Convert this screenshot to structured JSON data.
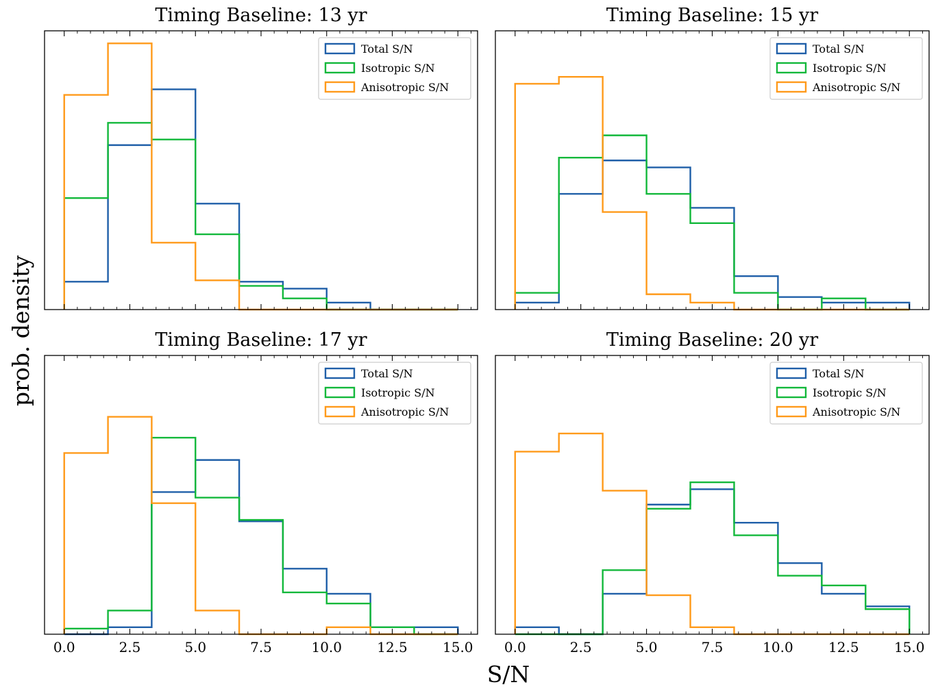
{
  "figure": {
    "xlabel": "S/N",
    "ylabel": "prob. density"
  },
  "colors": {
    "total": "#1f5fa8",
    "isotropic": "#12b83a",
    "anisotropic": "#ff9a1a"
  },
  "chart_data": [
    {
      "type": "histogram",
      "title": "Timing Baseline: 13 yr",
      "bin_edges": [
        0,
        1.667,
        3.333,
        5.0,
        6.667,
        8.333,
        10.0,
        11.667,
        13.333,
        15.0
      ],
      "xlim": [
        -0.75,
        15.75
      ],
      "ylim": [
        0,
        1.0
      ],
      "xticks": [
        0.0,
        2.5,
        5.0,
        7.5,
        10.0,
        12.5,
        15.0
      ],
      "tick_labels_visible": false,
      "legend": "top-right",
      "series": [
        {
          "name": "Total S/N",
          "color_key": "total",
          "values": [
            0.1,
            0.59,
            0.79,
            0.38,
            0.1,
            0.075,
            0.025,
            0,
            0
          ]
        },
        {
          "name": "Isotropic S/N",
          "color_key": "isotropic",
          "values": [
            0.4,
            0.67,
            0.61,
            0.27,
            0.085,
            0.04,
            0,
            0,
            0
          ]
        },
        {
          "name": "Anisotropic S/N",
          "color_key": "anisotropic",
          "values": [
            0.77,
            0.955,
            0.24,
            0.105,
            0,
            0,
            0,
            0,
            0
          ]
        }
      ]
    },
    {
      "type": "histogram",
      "title": "Timing Baseline: 15 yr",
      "bin_edges": [
        0,
        1.667,
        3.333,
        5.0,
        6.667,
        8.333,
        10.0,
        11.667,
        13.333,
        15.0
      ],
      "xlim": [
        -0.75,
        15.75
      ],
      "ylim": [
        0,
        1.0
      ],
      "xticks": [
        0.0,
        2.5,
        5.0,
        7.5,
        10.0,
        12.5,
        15.0
      ],
      "tick_labels_visible": false,
      "legend": "top-right",
      "series": [
        {
          "name": "Total S/N",
          "color_key": "total",
          "values": [
            0.025,
            0.415,
            0.535,
            0.51,
            0.365,
            0.12,
            0.045,
            0.025,
            0.025
          ]
        },
        {
          "name": "Isotropic S/N",
          "color_key": "isotropic",
          "values": [
            0.06,
            0.545,
            0.625,
            0.415,
            0.31,
            0.06,
            0,
            0.04,
            0
          ]
        },
        {
          "name": "Anisotropic S/N",
          "color_key": "anisotropic",
          "values": [
            0.81,
            0.835,
            0.35,
            0.055,
            0.025,
            0,
            0,
            0,
            0
          ]
        }
      ]
    },
    {
      "type": "histogram",
      "title": "Timing Baseline: 17 yr",
      "bin_edges": [
        0,
        1.667,
        3.333,
        5.0,
        6.667,
        8.333,
        10.0,
        11.667,
        13.333,
        15.0
      ],
      "xlim": [
        -0.75,
        15.75
      ],
      "ylim": [
        0,
        1.0
      ],
      "xticks": [
        0.0,
        2.5,
        5.0,
        7.5,
        10.0,
        12.5,
        15.0
      ],
      "tick_labels_visible": true,
      "legend": "top-right",
      "series": [
        {
          "name": "Total S/N",
          "color_key": "total",
          "values": [
            0,
            0.025,
            0.51,
            0.625,
            0.405,
            0.235,
            0.145,
            0.025,
            0.025
          ]
        },
        {
          "name": "Isotropic S/N",
          "color_key": "isotropic",
          "values": [
            0.02,
            0.085,
            0.705,
            0.49,
            0.41,
            0.15,
            0.11,
            0.025,
            0
          ]
        },
        {
          "name": "Anisotropic S/N",
          "color_key": "anisotropic",
          "values": [
            0.65,
            0.78,
            0.47,
            0.085,
            0,
            0,
            0.025,
            0,
            0
          ]
        }
      ]
    },
    {
      "type": "histogram",
      "title": "Timing Baseline: 20 yr",
      "bin_edges": [
        0,
        1.667,
        3.333,
        5.0,
        6.667,
        8.333,
        10.0,
        11.667,
        13.333,
        15.0
      ],
      "xlim": [
        -0.75,
        15.75
      ],
      "ylim": [
        0,
        1.0
      ],
      "xticks": [
        0.0,
        2.5,
        5.0,
        7.5,
        10.0,
        12.5,
        15.0
      ],
      "tick_labels_visible": true,
      "legend": "top-right",
      "series": [
        {
          "name": "Total S/N",
          "color_key": "total",
          "values": [
            0.025,
            0,
            0.145,
            0.465,
            0.52,
            0.4,
            0.255,
            0.145,
            0.1
          ]
        },
        {
          "name": "Isotropic S/N",
          "color_key": "isotropic",
          "values": [
            0,
            0,
            0.23,
            0.45,
            0.545,
            0.355,
            0.21,
            0.175,
            0.09
          ]
        },
        {
          "name": "Anisotropic S/N",
          "color_key": "anisotropic",
          "values": [
            0.655,
            0.72,
            0.515,
            0.14,
            0.025,
            0,
            0,
            0,
            0
          ]
        }
      ]
    }
  ]
}
